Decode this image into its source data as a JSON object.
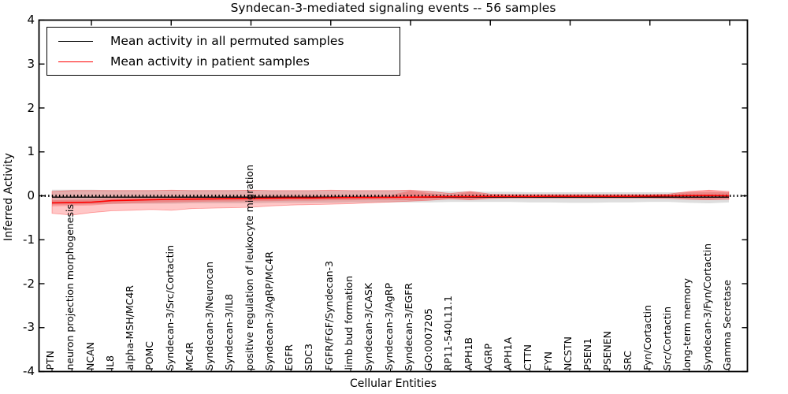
{
  "title": "Syndecan-3-mediated signaling events -- 56 samples",
  "axes": {
    "xlabel": "Cellular Entities",
    "ylabel": "Inferred Activity",
    "ytick_labels": [
      "4",
      "3",
      "2",
      "1",
      "0",
      "-1",
      "-2",
      "-3",
      "-4"
    ]
  },
  "legend": {
    "items": [
      {
        "label": "Mean activity in all permuted samples",
        "color": "#000000"
      },
      {
        "label": "Mean activity in patient samples",
        "color": "#ff0000"
      }
    ]
  },
  "chart_data": {
    "type": "line",
    "title": "Syndecan-3-mediated signaling events -- 56 samples",
    "xlabel": "Cellular Entities",
    "ylabel": "Inferred Activity",
    "ylim": [
      -4,
      4
    ],
    "yticks": [
      4,
      3,
      2,
      1,
      0,
      -1,
      -2,
      -3,
      -4
    ],
    "zero_line": true,
    "grid": false,
    "legend_position": "upper left",
    "categories": [
      "PTN",
      "neuron projection morphogenesis",
      "NCAN",
      "IL8",
      "alpha-MSH/MC4R",
      "POMC",
      "Syndecan-3/Src/Cortactin",
      "MC4R",
      "Syndecan-3/Neurocan",
      "Syndecan-3/IL8",
      "positive regulation of leukocyte migration",
      "Syndecan-3/AgRP/MC4R",
      "EGFR",
      "SDC3",
      "FGFR/FGF/Syndecan-3",
      "limb bud formation",
      "Syndecan-3/CASK",
      "Syndecan-3/AgRP",
      "Syndecan-3/EGFR",
      "GO:0007205",
      "RP11-540L11.1",
      "APH1B",
      "AGRP",
      "APH1A",
      "CTTN",
      "FYN",
      "NCSTN",
      "PSEN1",
      "PSENEN",
      "SRC",
      "Fyn/Cortactin",
      "Src/Cortactin",
      "long-term memory",
      "Syndecan-3/Fyn/Cortactin",
      "Gamma Secretase"
    ],
    "series": [
      {
        "name": "Mean activity in all permuted samples",
        "color": "#000000",
        "band_color": "rgba(0,0,0,0.13)",
        "values": [
          -0.03,
          -0.03,
          -0.03,
          -0.03,
          -0.03,
          -0.03,
          -0.03,
          -0.03,
          -0.03,
          -0.03,
          -0.03,
          -0.03,
          -0.03,
          -0.03,
          -0.03,
          -0.03,
          -0.03,
          -0.03,
          -0.03,
          -0.03,
          -0.03,
          -0.03,
          -0.03,
          -0.03,
          -0.03,
          -0.03,
          -0.03,
          -0.03,
          -0.03,
          -0.03,
          -0.03,
          -0.03,
          -0.03,
          -0.03,
          -0.03
        ],
        "band_upper": [
          0.14,
          0.14,
          0.14,
          0.13,
          0.13,
          0.13,
          0.13,
          0.13,
          0.13,
          0.13,
          0.13,
          0.12,
          0.12,
          0.12,
          0.12,
          0.12,
          0.12,
          0.12,
          0.12,
          0.11,
          0.1,
          0.1,
          0.09,
          0.09,
          0.08,
          0.08,
          0.08,
          0.08,
          0.08,
          0.08,
          0.08,
          0.08,
          0.08,
          0.08,
          0.08
        ],
        "band_lower": [
          -0.2,
          -0.2,
          -0.19,
          -0.19,
          -0.18,
          -0.18,
          -0.18,
          -0.17,
          -0.17,
          -0.17,
          -0.17,
          -0.16,
          -0.16,
          -0.16,
          -0.16,
          -0.15,
          -0.15,
          -0.15,
          -0.15,
          -0.15,
          -0.14,
          -0.14,
          -0.14,
          -0.14,
          -0.15,
          -0.15,
          -0.16,
          -0.16,
          -0.15,
          -0.15,
          -0.14,
          -0.14,
          -0.16,
          -0.17,
          -0.15
        ]
      },
      {
        "name": "Mean activity in patient samples",
        "color": "#ff0000",
        "band_color": "rgba(255,0,0,0.22)",
        "values": [
          -0.16,
          -0.155,
          -0.145,
          -0.11,
          -0.1,
          -0.09,
          -0.08,
          -0.075,
          -0.07,
          -0.065,
          -0.06,
          -0.055,
          -0.05,
          -0.05,
          -0.045,
          -0.04,
          -0.04,
          -0.035,
          -0.03,
          -0.025,
          -0.02,
          -0.02,
          -0.015,
          -0.015,
          -0.015,
          -0.01,
          -0.01,
          -0.01,
          -0.01,
          -0.01,
          -0.005,
          0.0,
          0.005,
          0.01,
          0.0
        ],
        "band_upper": [
          0.1,
          0.12,
          0.12,
          0.12,
          0.12,
          0.12,
          0.13,
          0.12,
          0.12,
          0.12,
          0.13,
          0.12,
          0.12,
          0.12,
          0.13,
          0.12,
          0.12,
          0.12,
          0.13,
          0.1,
          0.05,
          0.1,
          0.04,
          0.03,
          0.03,
          0.03,
          0.03,
          0.03,
          0.03,
          0.03,
          0.03,
          0.04,
          0.1,
          0.13,
          0.1
        ],
        "band_lower": [
          -0.4,
          -0.44,
          -0.38,
          -0.34,
          -0.33,
          -0.31,
          -0.33,
          -0.29,
          -0.28,
          -0.27,
          -0.26,
          -0.23,
          -0.21,
          -0.2,
          -0.19,
          -0.18,
          -0.16,
          -0.14,
          -0.12,
          -0.1,
          -0.07,
          -0.09,
          -0.06,
          -0.05,
          -0.05,
          -0.05,
          -0.05,
          -0.05,
          -0.05,
          -0.05,
          -0.05,
          -0.06,
          -0.08,
          -0.09,
          -0.08
        ],
        "inner_band_upper": [
          -0.1,
          -0.09,
          -0.08,
          -0.06,
          -0.05,
          -0.04,
          -0.03,
          -0.02,
          -0.02,
          -0.01,
          -0.01,
          0.0,
          0.0,
          0.0,
          0.0,
          0.0,
          0.0,
          0.01,
          0.12,
          0.06,
          0.02,
          0.09,
          0.02,
          0.01,
          0.01,
          0.01,
          0.01,
          0.01,
          0.01,
          0.01,
          0.01,
          0.02,
          0.09,
          0.12,
          0.08
        ],
        "inner_band_lower": [
          -0.24,
          -0.23,
          -0.22,
          -0.18,
          -0.17,
          -0.16,
          -0.15,
          -0.14,
          -0.13,
          -0.13,
          -0.12,
          -0.12,
          -0.11,
          -0.11,
          -0.1,
          -0.1,
          -0.09,
          -0.09,
          -0.1,
          -0.08,
          -0.06,
          -0.09,
          -0.05,
          -0.04,
          -0.04,
          -0.04,
          -0.04,
          -0.04,
          -0.04,
          -0.03,
          -0.03,
          -0.04,
          -0.07,
          -0.08,
          -0.06
        ]
      }
    ]
  }
}
